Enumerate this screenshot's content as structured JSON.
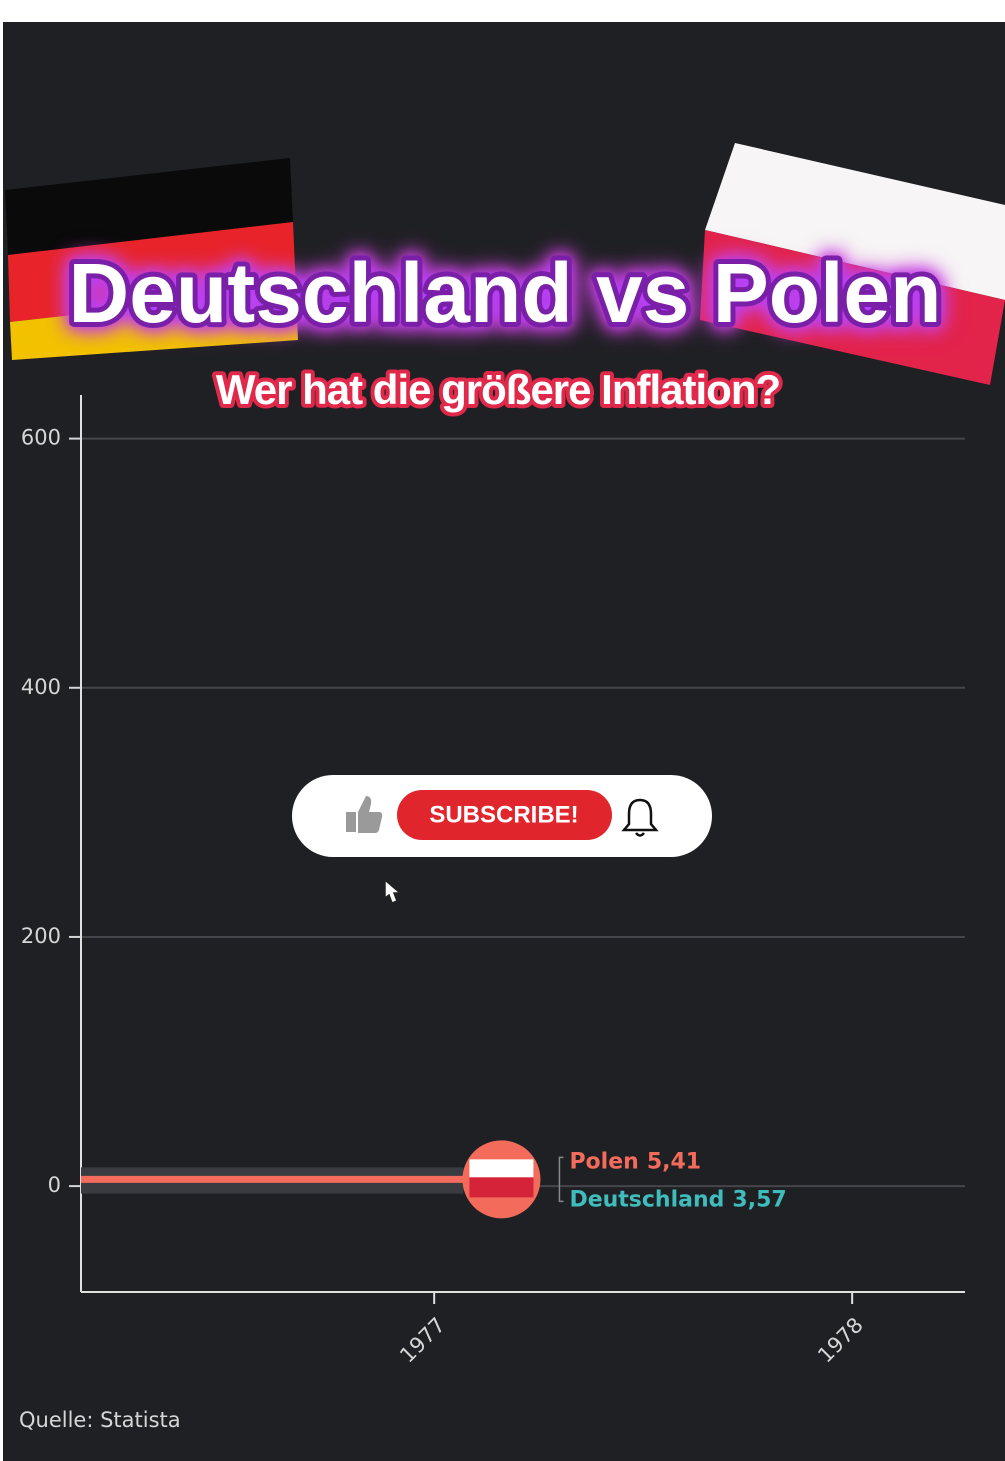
{
  "chart_data": {
    "type": "line",
    "title": "Deutschland vs Polen",
    "subtitle": "Wer hat die größere Inflation?",
    "source": "Quelle: Statista",
    "x": [
      1976.155,
      1977.07
    ],
    "series": [
      {
        "name": "Deutschland",
        "color": "#3fbcbc",
        "values": [
          3.6,
          3.57
        ],
        "value_labels": [
          null,
          "3,57"
        ]
      },
      {
        "name": "Polen",
        "color": "#f26b5b",
        "values": [
          5.4,
          5.41
        ],
        "value_labels": [
          null,
          "5,41"
        ]
      }
    ],
    "xlim": [
      1976.155,
      1978.27
    ],
    "xticks": [
      1977,
      1978
    ],
    "ylim": [
      -85,
      635
    ],
    "yticks": [
      0,
      200,
      400,
      600
    ],
    "grid": true
  },
  "overlay": {
    "subscribe": "SUBSCRIBE!"
  }
}
